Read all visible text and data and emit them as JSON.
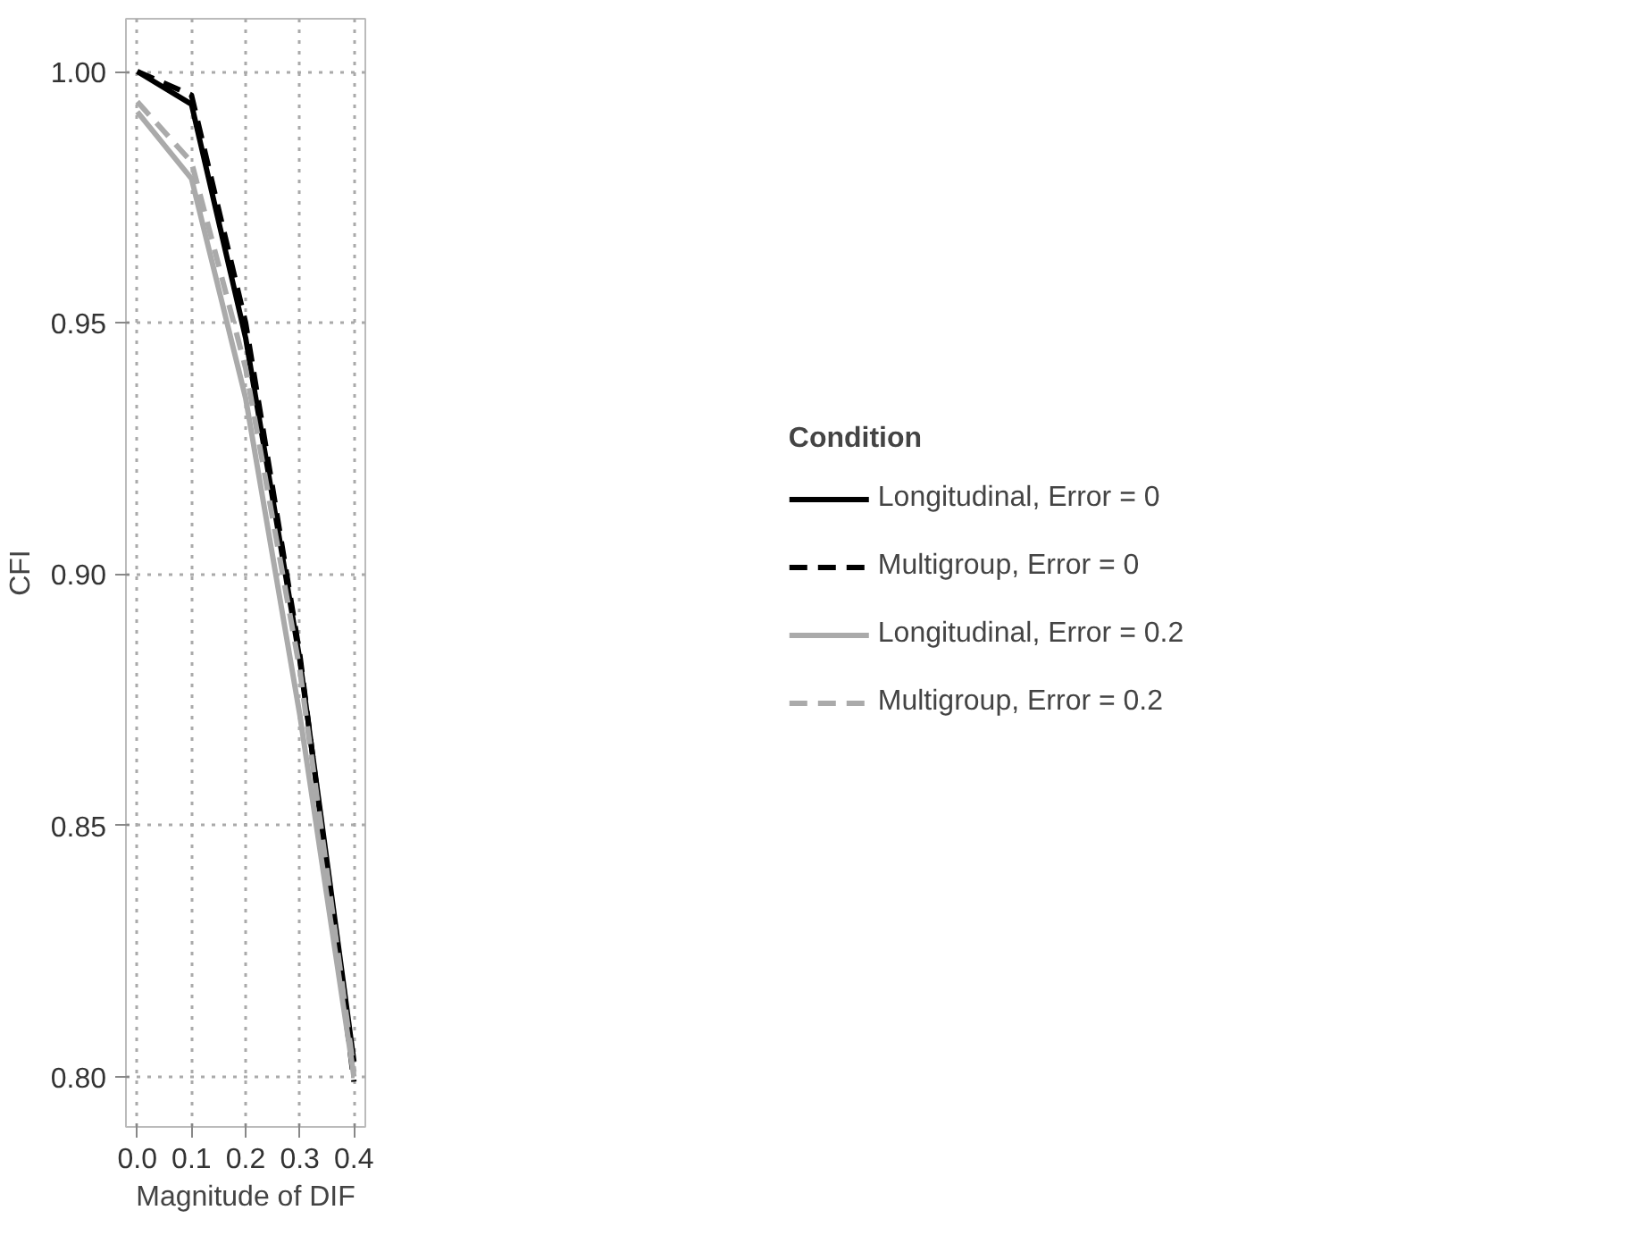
{
  "chart_data": {
    "type": "line",
    "xlabel": "Magnitude of DIF",
    "ylabel": "CFI",
    "legend_title": "Condition",
    "x": [
      0.0,
      0.1,
      0.2,
      0.3,
      0.4
    ],
    "series": [
      {
        "name": "Longitudinal, Error = 0",
        "color": "#000000",
        "line_style": "solid",
        "values": [
          1.0,
          0.9935,
          0.947,
          0.883,
          0.803
        ]
      },
      {
        "name": "Multigroup, Error = 0",
        "color": "#000000",
        "line_style": "dashed",
        "values": [
          1.0,
          0.9953,
          0.95,
          0.884,
          0.799
        ]
      },
      {
        "name": "Longitudinal, Error = 0.2",
        "color": "#aaaaaa",
        "line_style": "solid",
        "values": [
          0.992,
          0.9787,
          0.935,
          0.872,
          0.8
        ]
      },
      {
        "name": "Multigroup, Error = 0.2",
        "color": "#aaaaaa",
        "line_style": "dashed",
        "values": [
          0.994,
          0.982,
          0.941,
          0.881,
          0.801
        ]
      }
    ],
    "xlim": [
      -0.021,
      0.421
    ],
    "ylim": [
      0.79,
      1.0105
    ],
    "xticks": [
      {
        "value": 0.0,
        "label": "0.0"
      },
      {
        "value": 0.1,
        "label": "0.1"
      },
      {
        "value": 0.2,
        "label": "0.2"
      },
      {
        "value": 0.3,
        "label": "0.3"
      },
      {
        "value": 0.4,
        "label": "0.4"
      }
    ],
    "yticks": [
      {
        "value": 0.8,
        "label": "0.80"
      },
      {
        "value": 0.85,
        "label": "0.85"
      },
      {
        "value": 0.9,
        "label": "0.90"
      },
      {
        "value": 0.95,
        "label": "0.95"
      },
      {
        "value": 1.0,
        "label": "1.00"
      }
    ],
    "grid": true,
    "legend": "right",
    "marker": "none"
  }
}
